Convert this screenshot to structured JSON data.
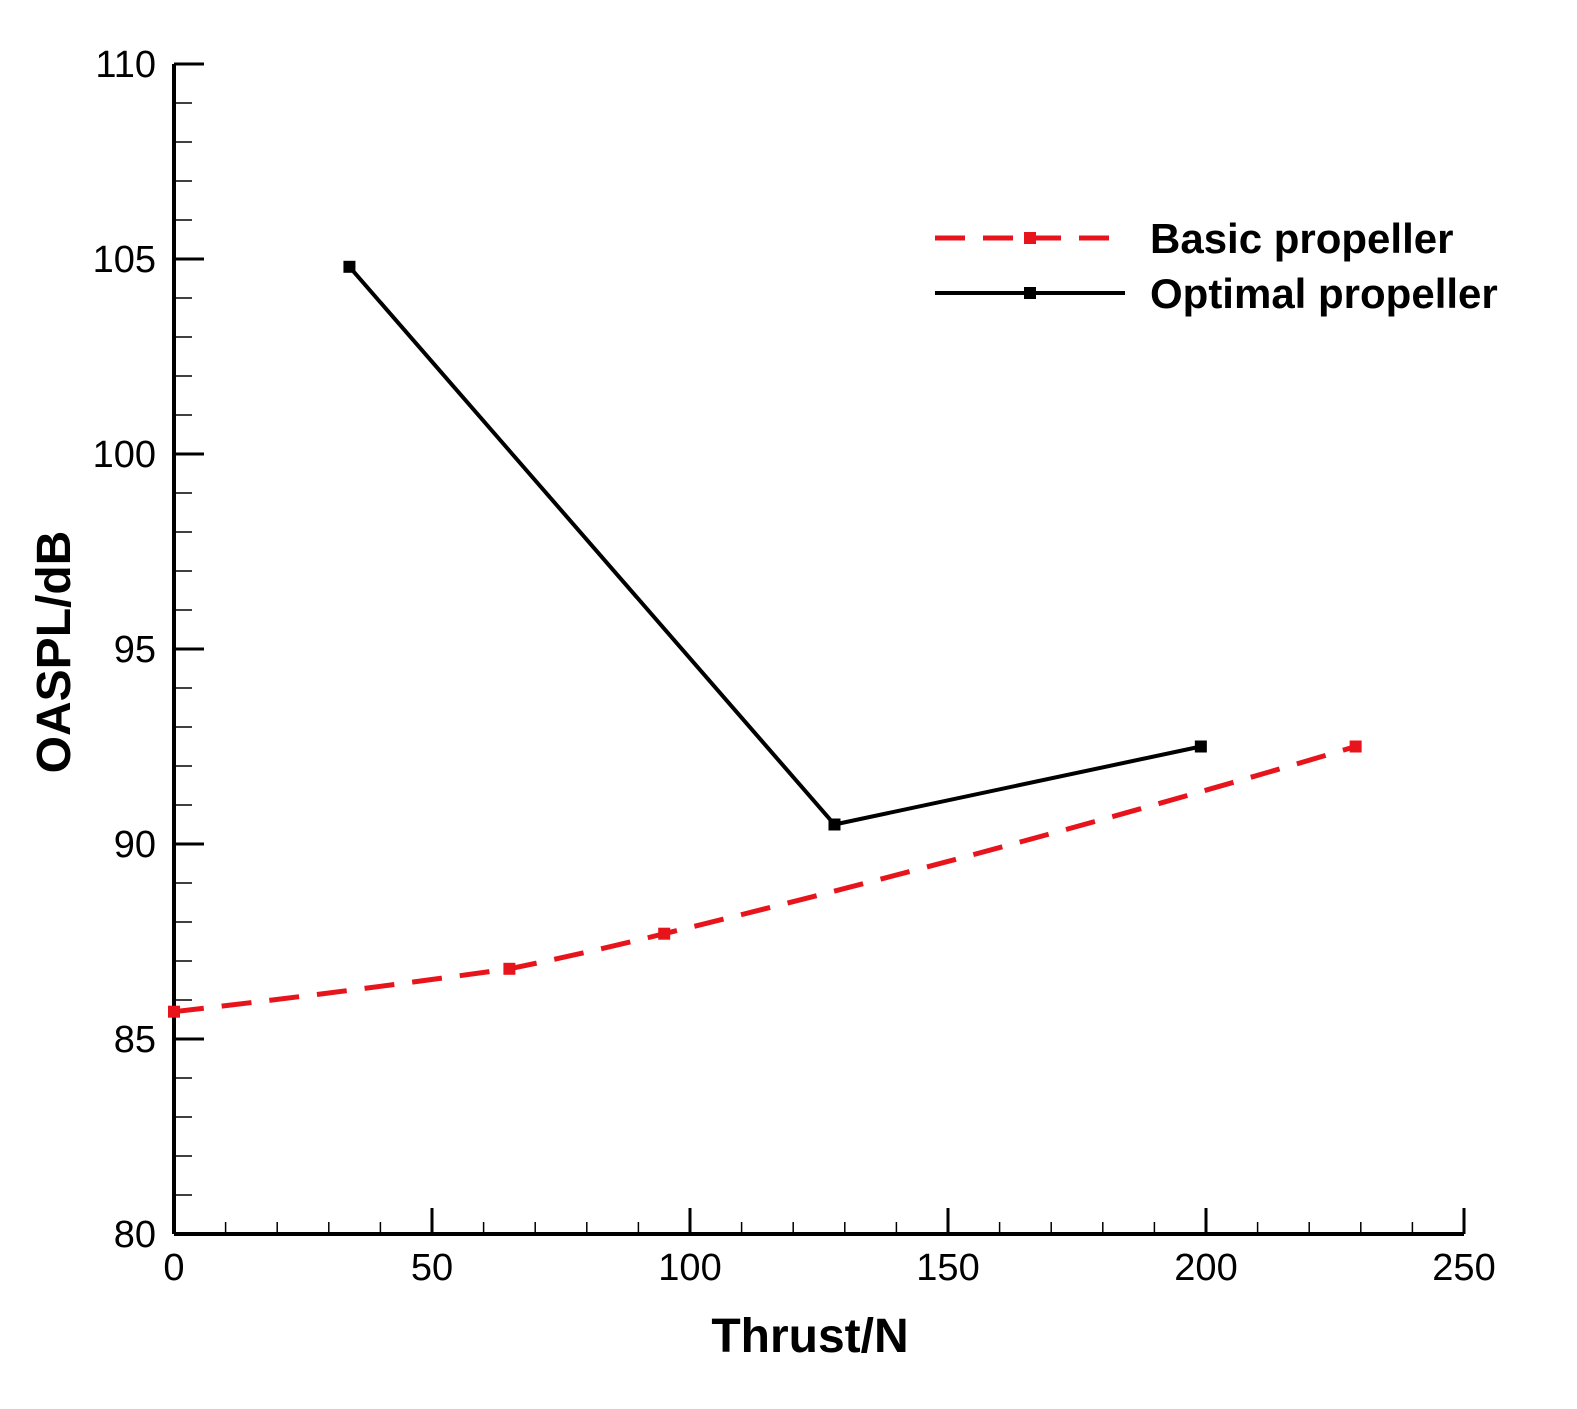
{
  "chart_data": {
    "type": "line",
    "title": "",
    "xlabel": "Thrust/N",
    "ylabel": "OASPL/dB",
    "xlim": [
      0,
      250
    ],
    "ylim": [
      80,
      110
    ],
    "xticks": [
      0,
      50,
      100,
      150,
      200,
      250
    ],
    "yticks": [
      80,
      85,
      90,
      95,
      100,
      105,
      110
    ],
    "x_minor_step": 10,
    "y_minor_step": 1,
    "grid": false,
    "legend_position": "top-right",
    "series": [
      {
        "name": "Basic propeller",
        "style": "dashed",
        "marker": "square",
        "color": "#e8141c",
        "x": [
          0,
          65,
          95,
          229
        ],
        "y": [
          85.7,
          86.8,
          87.7,
          92.5
        ]
      },
      {
        "name": "Optimal propeller",
        "style": "solid",
        "marker": "square",
        "color": "#000000",
        "x": [
          34,
          128,
          199
        ],
        "y": [
          104.8,
          90.5,
          92.5
        ]
      }
    ]
  }
}
